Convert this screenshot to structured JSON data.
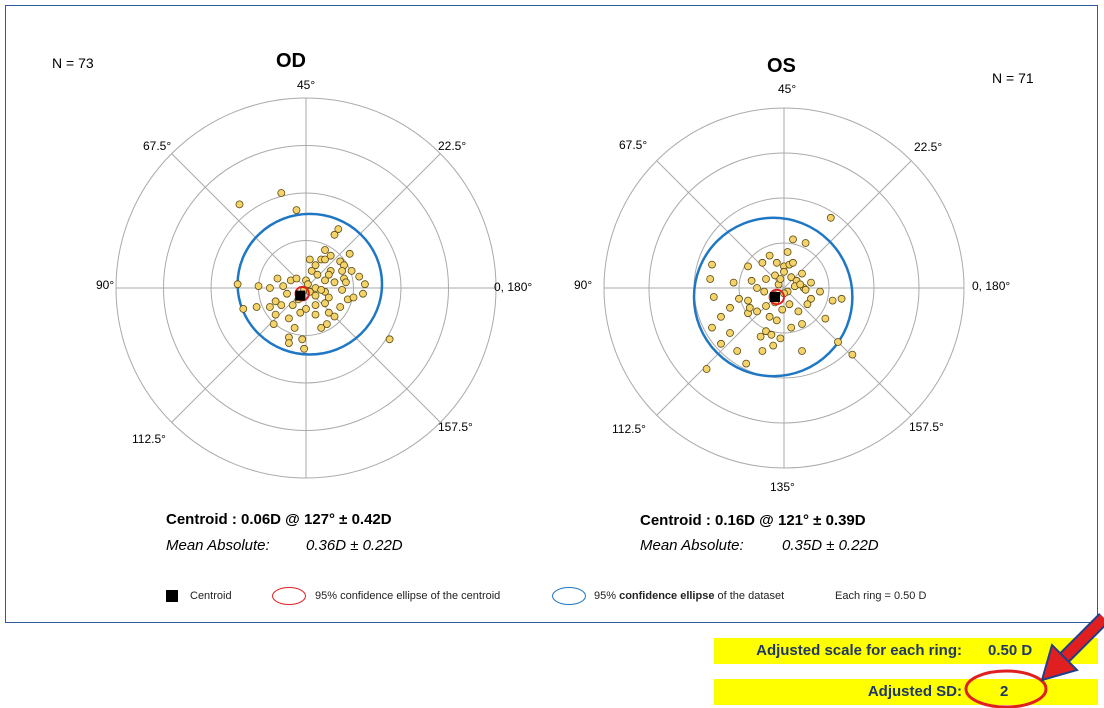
{
  "chart_data": [
    {
      "type": "scatter",
      "subtype": "polar",
      "title": "OD",
      "n_label": "N = 73",
      "angle_labels": [
        "45°",
        "22.5°",
        "0, 180°",
        "157.5°",
        "112.5°",
        "90°",
        "67.5°"
      ],
      "centroid_text": "Centroid :  0.06D @  127° ±  0.42D",
      "mean_abs_label": "Mean Absolute:",
      "mean_abs_value": "0.36D  ±  0.22D",
      "colors": {
        "points": "#f5d36b",
        "centroid": "#000000",
        "centroid_ellipse": "#e02020",
        "dataset_ellipse": "#1f77c4",
        "grid": "#aaaaaa"
      },
      "rings": 4,
      "points": [
        [
          -0.35,
          0.44
        ],
        [
          -0.13,
          0.5
        ],
        [
          -0.05,
          0.41
        ],
        [
          0.17,
          0.31
        ],
        [
          0.15,
          0.28
        ],
        [
          0.23,
          0.18
        ],
        [
          0.08,
          0.15
        ],
        [
          0.1,
          0.15
        ],
        [
          0.18,
          0.14
        ],
        [
          0.05,
          0.12
        ],
        [
          0.2,
          0.12
        ],
        [
          0.13,
          0.09
        ],
        [
          0.19,
          0.09
        ],
        [
          0.03,
          0.09
        ],
        [
          0.06,
          0.07
        ],
        [
          0.12,
          0.07
        ],
        [
          0.28,
          0.06
        ],
        [
          0.2,
          0.05
        ],
        [
          0.1,
          0.04
        ],
        [
          0.0,
          0.04
        ],
        [
          -0.08,
          0.04
        ],
        [
          -0.15,
          0.05
        ],
        [
          -0.05,
          0.05
        ],
        [
          0.15,
          0.03
        ],
        [
          0.21,
          0.03
        ],
        [
          0.31,
          0.02
        ],
        [
          -0.25,
          0.01
        ],
        [
          -0.19,
          0.0
        ],
        [
          -0.12,
          0.01
        ],
        [
          0.19,
          -0.01
        ],
        [
          -0.36,
          0.02
        ],
        [
          0.1,
          -0.02
        ],
        [
          0.3,
          -0.03
        ],
        [
          -0.1,
          -0.03
        ],
        [
          0.05,
          -0.04
        ],
        [
          -0.04,
          -0.06
        ],
        [
          0.22,
          -0.06
        ],
        [
          -0.16,
          -0.07
        ],
        [
          0.25,
          -0.05
        ],
        [
          0.1,
          -0.08
        ],
        [
          -0.13,
          -0.09
        ],
        [
          -0.07,
          -0.09
        ],
        [
          -0.19,
          -0.1
        ],
        [
          0.0,
          -0.11
        ],
        [
          0.18,
          -0.1
        ],
        [
          -0.26,
          -0.1
        ],
        [
          -0.16,
          -0.14
        ],
        [
          0.05,
          -0.14
        ],
        [
          0.15,
          -0.15
        ],
        [
          -0.09,
          -0.16
        ],
        [
          -0.17,
          -0.19
        ],
        [
          0.11,
          -0.19
        ],
        [
          -0.06,
          -0.21
        ],
        [
          0.08,
          -0.21
        ],
        [
          -0.09,
          -0.26
        ],
        [
          -0.09,
          -0.29
        ],
        [
          -0.02,
          -0.27
        ],
        [
          0.44,
          -0.27
        ],
        [
          -0.01,
          -0.32
        ],
        [
          -0.33,
          -0.11
        ],
        [
          0.13,
          0.17
        ],
        [
          0.1,
          0.2
        ],
        [
          0.02,
          0.15
        ],
        [
          0.24,
          0.09
        ],
        [
          -0.01,
          -0.01
        ],
        [
          0.05,
          0.0
        ],
        [
          0.08,
          -0.01
        ],
        [
          0.01,
          0.02
        ],
        [
          0.02,
          -0.02
        ],
        [
          0.12,
          -0.05
        ],
        [
          -0.03,
          -0.13
        ],
        [
          0.12,
          -0.13
        ],
        [
          0.05,
          -0.09
        ]
      ],
      "centroid": [
        -0.03,
        -0.04
      ],
      "dataset_ellipse": {
        "cx": 0.02,
        "cy": 0.02,
        "rx": 0.38,
        "ry": 0.37
      },
      "centroid_ellipse": {
        "cx": -0.02,
        "cy": -0.03,
        "rx": 0.035,
        "ry": 0.035
      }
    },
    {
      "type": "scatter",
      "subtype": "polar",
      "title": "OS",
      "n_label": "N = 71",
      "angle_labels": [
        "45°",
        "22.5°",
        "0, 180°",
        "157.5°",
        "135°",
        "112.5°",
        "90°",
        "67.5°"
      ],
      "centroid_text": "Centroid :  0.16D @  121° ±  0.39D",
      "mean_abs_label": "Mean Absolute:",
      "mean_abs_value": "0.35D  ±  0.22D",
      "colors": {
        "points": "#f5d36b",
        "centroid": "#000000",
        "centroid_ellipse": "#e02020",
        "dataset_ellipse": "#1f77c4",
        "grid": "#aaaaaa"
      },
      "rings": 4,
      "points": [
        [
          0.26,
          0.39
        ],
        [
          0.05,
          0.27
        ],
        [
          0.12,
          0.25
        ],
        [
          -0.4,
          0.13
        ],
        [
          -0.41,
          0.05
        ],
        [
          -0.39,
          -0.05
        ],
        [
          -0.2,
          0.12
        ],
        [
          -0.12,
          0.14
        ],
        [
          -0.04,
          0.14
        ],
        [
          0.0,
          0.12
        ],
        [
          0.03,
          0.13
        ],
        [
          0.1,
          0.08
        ],
        [
          0.0,
          0.09
        ],
        [
          -0.05,
          0.07
        ],
        [
          0.04,
          0.06
        ],
        [
          -0.1,
          0.05
        ],
        [
          -0.18,
          0.04
        ],
        [
          0.07,
          0.04
        ],
        [
          0.15,
          0.03
        ],
        [
          -0.28,
          0.03
        ],
        [
          -0.03,
          0.02
        ],
        [
          0.11,
          0.0
        ],
        [
          -0.15,
          0.0
        ],
        [
          0.2,
          -0.02
        ],
        [
          0.02,
          -0.02
        ],
        [
          0.32,
          -0.06
        ],
        [
          -0.25,
          -0.06
        ],
        [
          -0.05,
          -0.04
        ],
        [
          0.15,
          -0.06
        ],
        [
          -0.3,
          -0.11
        ],
        [
          -0.2,
          -0.07
        ],
        [
          -0.1,
          -0.1
        ],
        [
          -0.05,
          -0.08
        ],
        [
          0.03,
          -0.09
        ],
        [
          0.13,
          -0.09
        ],
        [
          0.27,
          -0.07
        ],
        [
          -0.2,
          -0.14
        ],
        [
          -0.35,
          -0.16
        ],
        [
          0.08,
          -0.13
        ],
        [
          -0.15,
          -0.13
        ],
        [
          0.23,
          -0.17
        ],
        [
          -0.08,
          -0.16
        ],
        [
          -0.04,
          -0.18
        ],
        [
          0.1,
          -0.2
        ],
        [
          -0.1,
          -0.24
        ],
        [
          0.04,
          -0.22
        ],
        [
          -0.4,
          -0.22
        ],
        [
          -0.3,
          -0.25
        ],
        [
          -0.13,
          -0.27
        ],
        [
          -0.02,
          -0.28
        ],
        [
          -0.07,
          -0.26
        ],
        [
          0.3,
          -0.3
        ],
        [
          -0.35,
          -0.31
        ],
        [
          -0.26,
          -0.35
        ],
        [
          -0.06,
          -0.32
        ],
        [
          0.1,
          -0.35
        ],
        [
          -0.12,
          -0.35
        ],
        [
          0.38,
          -0.37
        ],
        [
          -0.21,
          -0.42
        ],
        [
          -0.43,
          -0.45
        ],
        [
          0.05,
          0.14
        ],
        [
          -0.08,
          0.18
        ],
        [
          0.06,
          0.01
        ],
        [
          -0.02,
          0.05
        ],
        [
          0.0,
          -0.03
        ],
        [
          0.09,
          0.02
        ],
        [
          -0.11,
          -0.02
        ],
        [
          0.02,
          0.2
        ],
        [
          0.12,
          -0.01
        ],
        [
          -0.19,
          -0.11
        ],
        [
          -0.01,
          -0.12
        ]
      ],
      "centroid": [
        -0.05,
        -0.05
      ],
      "dataset_ellipse": {
        "cx": -0.06,
        "cy": -0.05,
        "rx": 0.44,
        "ry": 0.44
      },
      "centroid_ellipse": {
        "cx": -0.04,
        "cy": -0.05,
        "rx": 0.04,
        "ry": 0.04
      }
    }
  ],
  "legend": {
    "centroid_label": "Centroid",
    "centroid_ellipse_label": "95% confidence ellipse of  the centroid",
    "dataset_ellipse_label_pre": "95% ",
    "dataset_ellipse_label_bold": "confidence ellipse",
    "dataset_ellipse_label_post": " of the dataset",
    "ring_scale_label": "Each ring =   0.50  D"
  },
  "settings": {
    "scale_label": "Adjusted scale for each ring:",
    "scale_value": "0.50  D",
    "sd_label": "Adjusted SD:",
    "sd_value": "2",
    "highlight_color": "#ffff00",
    "annotation_color": "#e02020"
  }
}
